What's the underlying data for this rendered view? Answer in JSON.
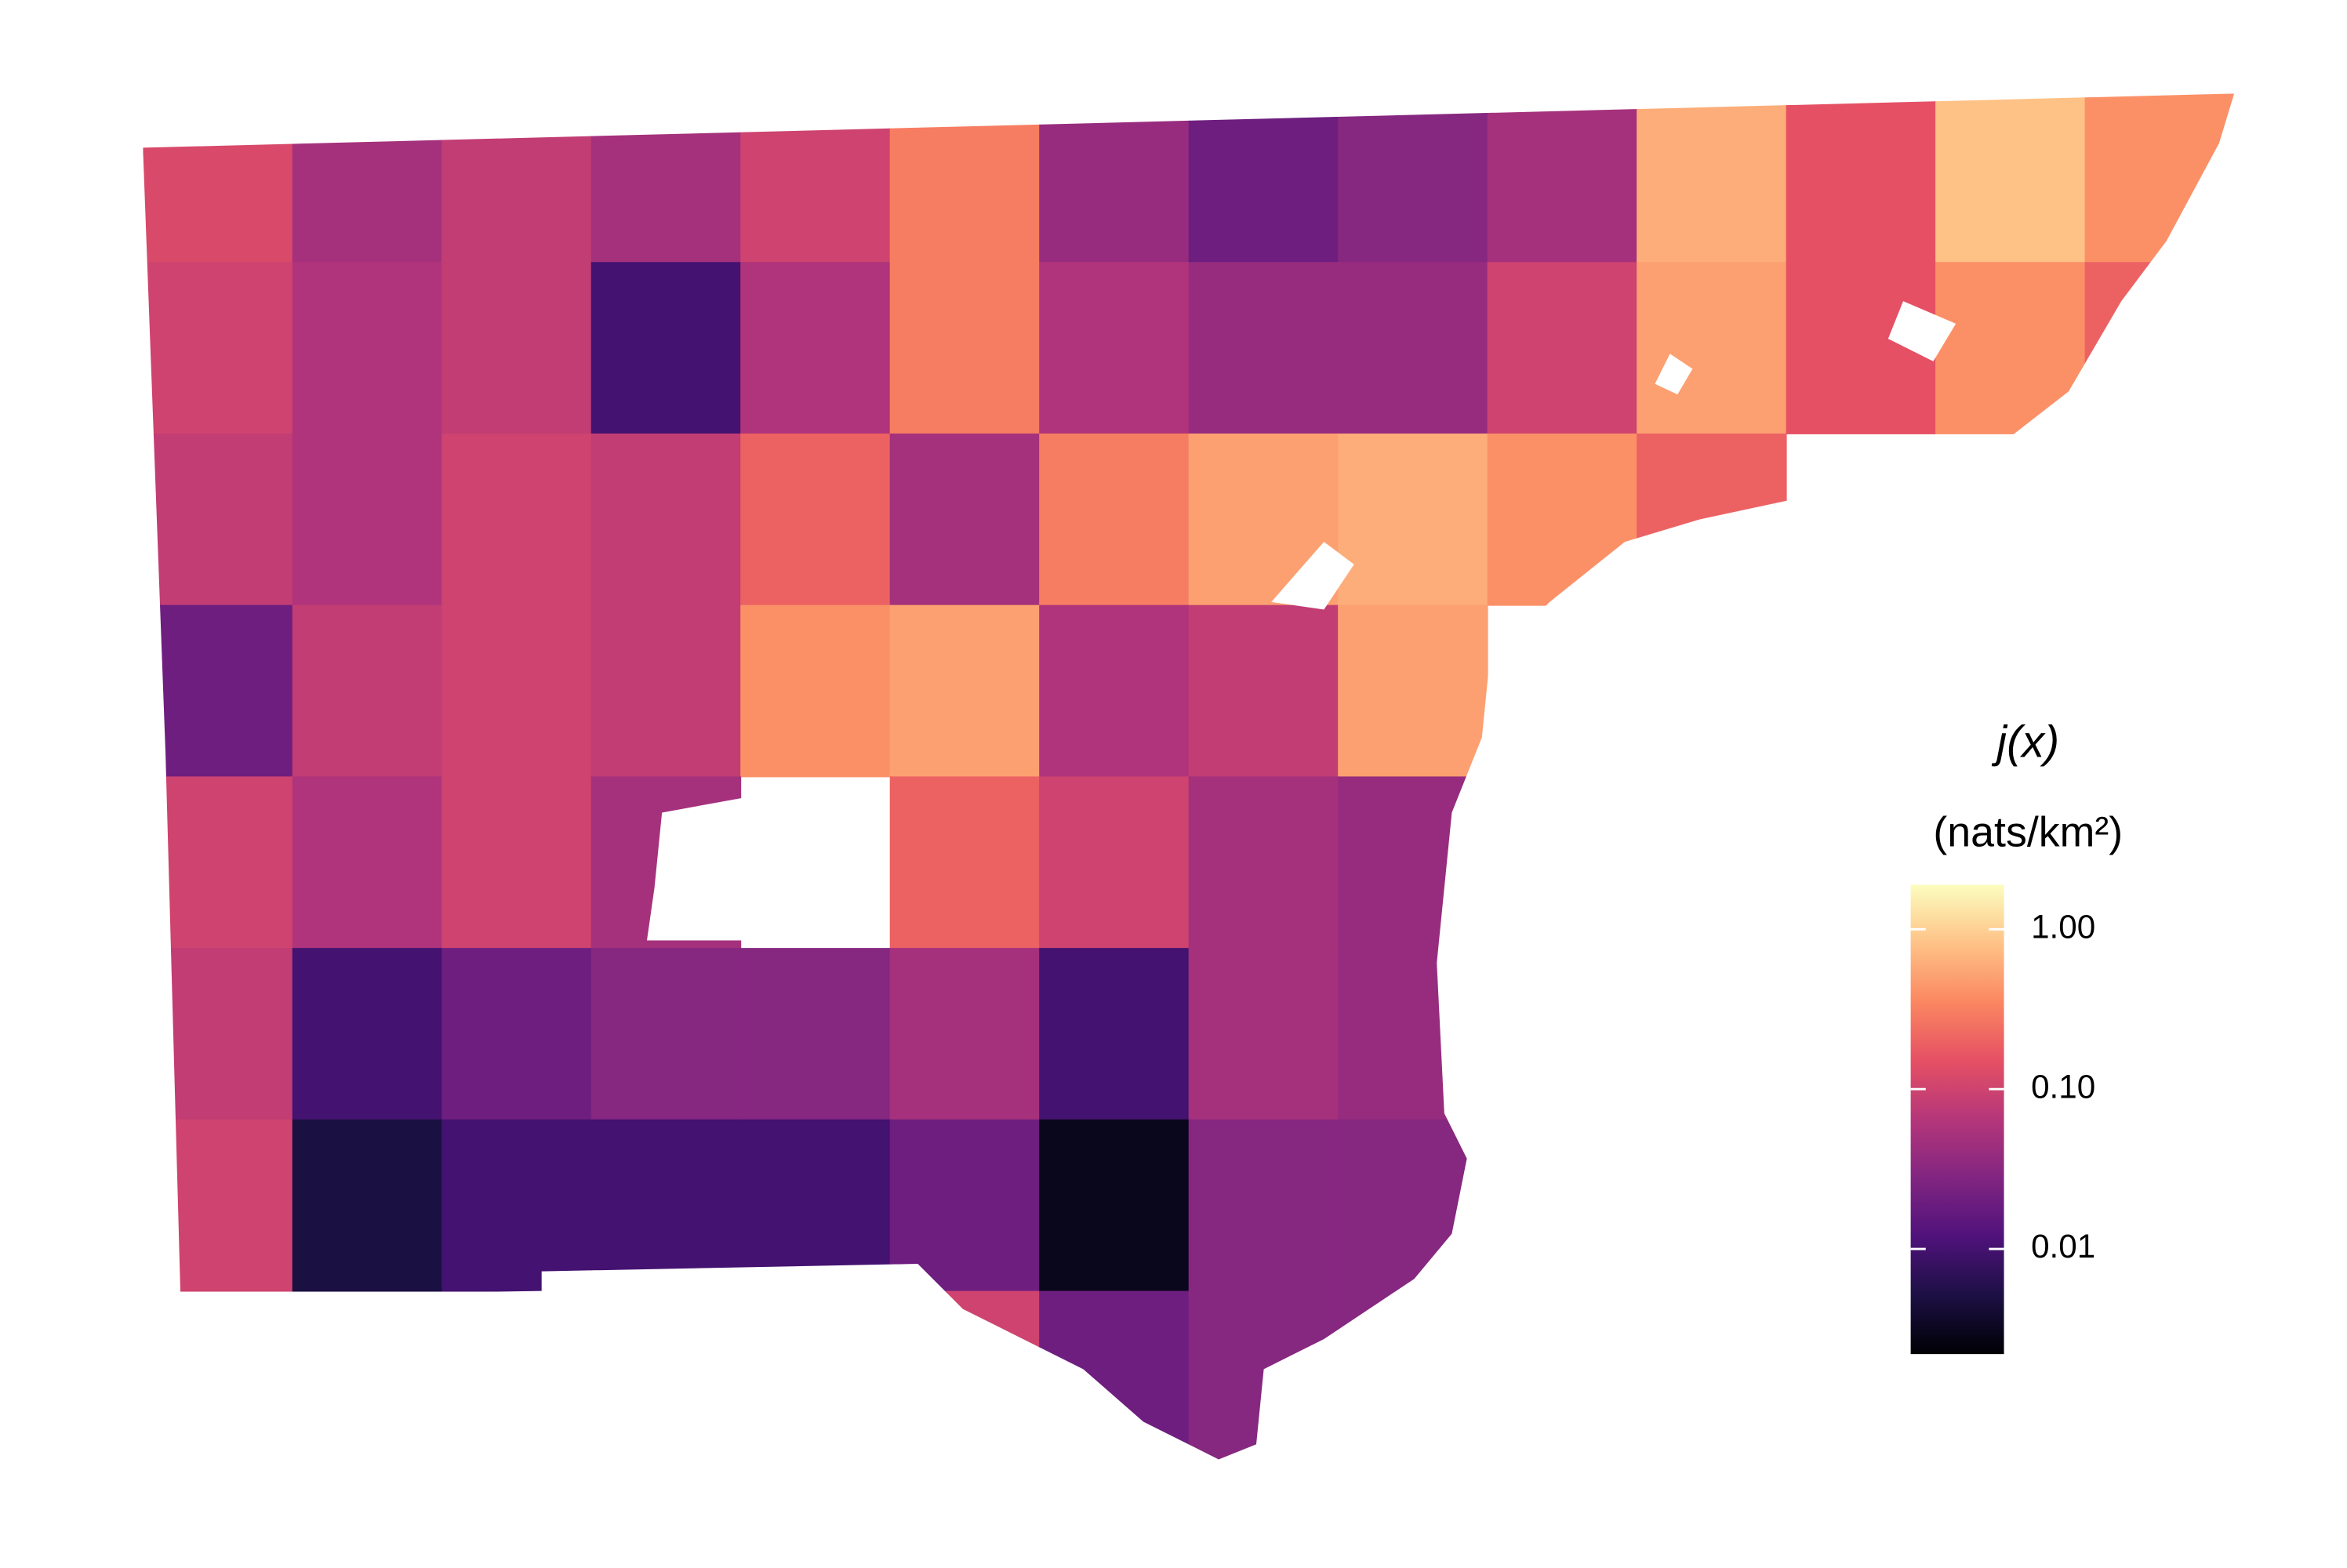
{
  "chart_data": {
    "type": "choropleth",
    "legend_title": "j(x)",
    "legend_subtitle": "(nats/km²)",
    "log_scale": true,
    "clim": [
      0.0022,
      1.9
    ],
    "cticks": [
      {
        "value": 1,
        "label": "1.00"
      },
      {
        "value": 0.1,
        "label": "0.10"
      },
      {
        "value": 0.01,
        "label": "0.01"
      }
    ],
    "colorscale": [
      "#000004",
      "#1c1044",
      "#4f127b",
      "#812581",
      "#b5367a",
      "#e55064",
      "#fb8761",
      "#fec287",
      "#fcfdbf"
    ],
    "values": [
      [
        0.12,
        0.05,
        0.08,
        0.05,
        0.1,
        0.3,
        0.04,
        0.02,
        0.03,
        0.05,
        0.6,
        0.15,
        0.8,
        0.4
      ],
      [
        0.1,
        0.06,
        0.08,
        0.01,
        0.06,
        0.3,
        0.06,
        0.04,
        0.04,
        0.1,
        0.5,
        0.15,
        0.4,
        0.2
      ],
      [
        0.08,
        0.06,
        0.1,
        0.08,
        0.2,
        0.05,
        0.3,
        0.5,
        0.6,
        0.4,
        0.2,
        null,
        null,
        null
      ],
      [
        0.02,
        0.08,
        0.1,
        0.08,
        0.4,
        0.5,
        0.06,
        0.08,
        0.5,
        null,
        null,
        null,
        null,
        null
      ],
      [
        0.1,
        0.06,
        0.1,
        0.05,
        null,
        0.2,
        0.1,
        0.05,
        0.04,
        null,
        null,
        null,
        null,
        null
      ],
      [
        0.08,
        0.01,
        0.02,
        0.03,
        0.03,
        0.05,
        0.01,
        0.05,
        0.04,
        null,
        null,
        null,
        null,
        null
      ],
      [
        0.1,
        0.005,
        0.01,
        0.01,
        0.01,
        0.02,
        0.003,
        0.03,
        0.03,
        null,
        null,
        null,
        null,
        null
      ],
      [
        null,
        null,
        null,
        null,
        null,
        0.1,
        0.02,
        0.03,
        0.03,
        null,
        null,
        null,
        null,
        null
      ]
    ]
  }
}
